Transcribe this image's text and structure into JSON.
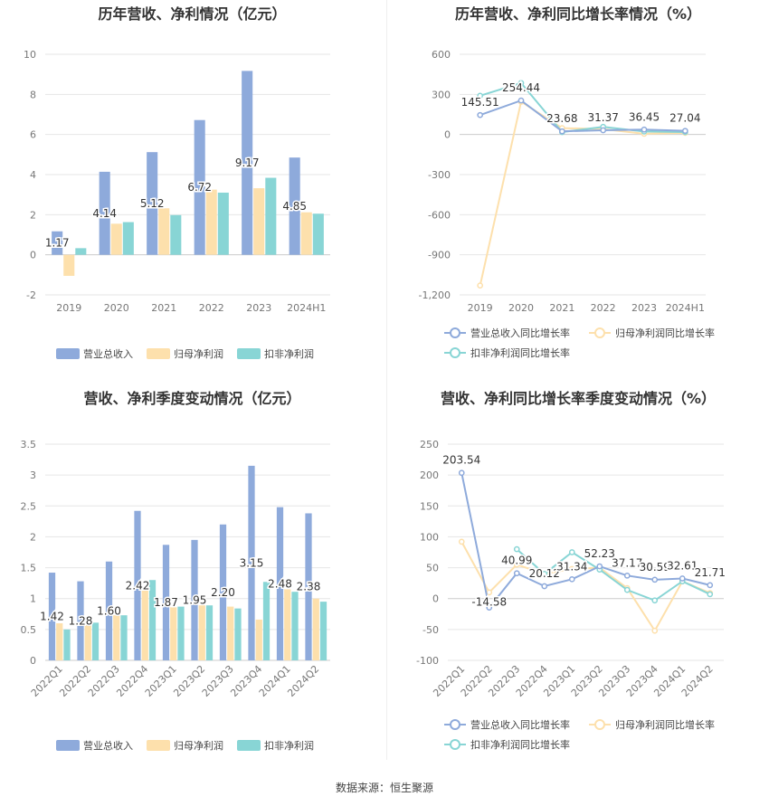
{
  "colors": {
    "revenue": "#8eaadb",
    "net_profit": "#fde0ac",
    "deducted_profit": "#88d5d5",
    "grid": "#e6e6e6",
    "axis_text": "#777777",
    "title": "#333333",
    "label": "#333333"
  },
  "legend_labels": {
    "revenue": "营业总收入",
    "net_profit": "归母净利润",
    "deducted_profit": "扣非净利润",
    "revenue_yoy": "营业总收入同比增长率",
    "net_profit_yoy": "归母净利润同比增长率",
    "deducted_profit_yoy": "扣非净利润同比增长率"
  },
  "source": "数据来源：恒生聚源",
  "chart_data": [
    {
      "id": "annual_amount",
      "type": "bar",
      "title": "历年营收、净利情况（亿元）",
      "categories": [
        "2019",
        "2020",
        "2021",
        "2022",
        "2023",
        "2024H1"
      ],
      "ylim": [
        -2,
        10
      ],
      "yticks": [
        "-2",
        "0",
        "2",
        "4",
        "6",
        "8",
        "10"
      ],
      "ytick_values": [
        -2,
        0,
        2,
        4,
        6,
        8,
        10
      ],
      "series": [
        {
          "name": "营业总收入",
          "values": [
            1.17,
            4.14,
            5.12,
            6.72,
            9.17,
            4.85
          ]
        },
        {
          "name": "归母净利润",
          "values": [
            -1.05,
            1.55,
            2.32,
            3.25,
            3.32,
            2.12
          ]
        },
        {
          "name": "扣非净利润",
          "values": [
            0.33,
            1.63,
            1.98,
            3.1,
            3.84,
            2.05
          ]
        }
      ],
      "data_labels": [
        "1.17",
        "4.14",
        "5.12",
        "6.72",
        "9.17",
        "4.85"
      ]
    },
    {
      "id": "annual_growth",
      "type": "line",
      "title": "历年营收、净利同比增长率情况（%）",
      "categories": [
        "2019",
        "2020",
        "2021",
        "2022",
        "2023",
        "2024H1"
      ],
      "ylim": [
        -1200,
        600
      ],
      "yticks": [
        "-1,200",
        "-900",
        "-600",
        "-300",
        "0",
        "300",
        "600"
      ],
      "ytick_values": [
        -1200,
        -900,
        -600,
        -300,
        0,
        300,
        600
      ],
      "series": [
        {
          "name": "营业总收入同比增长率",
          "values": [
            145.51,
            254.44,
            23.68,
            31.37,
            36.45,
            27.04
          ]
        },
        {
          "name": "归母净利润同比增长率",
          "values": [
            -1130,
            245,
            48,
            40,
            5,
            12
          ]
        },
        {
          "name": "扣非净利润同比增长率",
          "values": [
            290,
            385,
            18,
            57,
            22,
            18
          ]
        }
      ],
      "data_labels": [
        "145.51",
        "254.44",
        "23.68",
        "31.37",
        "36.45",
        "27.04"
      ]
    },
    {
      "id": "quarterly_amount",
      "type": "bar",
      "title": "营收、净利季度变动情况（亿元）",
      "categories": [
        "2022Q1",
        "2022Q2",
        "2022Q3",
        "2022Q4",
        "2023Q1",
        "2023Q2",
        "2023Q3",
        "2023Q4",
        "2024Q1",
        "2024Q2"
      ],
      "ylim": [
        0,
        3.5
      ],
      "yticks": [
        "0",
        "0.5",
        "1",
        "1.5",
        "2",
        "2.5",
        "3",
        "3.5"
      ],
      "ytick_values": [
        0,
        0.5,
        1,
        1.5,
        2,
        2.5,
        3,
        3.5
      ],
      "series": [
        {
          "name": "营业总收入",
          "values": [
            1.42,
            1.28,
            1.6,
            2.42,
            1.87,
            1.95,
            2.2,
            3.15,
            2.48,
            2.38
          ]
        },
        {
          "name": "归母净利润",
          "values": [
            0.6,
            0.58,
            0.73,
            1.17,
            0.86,
            0.89,
            0.87,
            0.66,
            1.15,
            1.0
          ]
        },
        {
          "name": "扣非净利润",
          "values": [
            0.5,
            0.61,
            0.73,
            1.3,
            0.87,
            0.89,
            0.84,
            1.27,
            1.11,
            0.95
          ]
        }
      ],
      "data_labels": [
        "1.42",
        "1.28",
        "1.60",
        "2.42",
        "1.87",
        "1.95",
        "2.20",
        "3.15",
        "2.48",
        "2.38"
      ]
    },
    {
      "id": "quarterly_growth",
      "type": "line",
      "title": "营收、净利同比增长率季度变动情况（%）",
      "categories": [
        "2022Q1",
        "2022Q2",
        "2022Q3",
        "2022Q4",
        "2023Q1",
        "2023Q2",
        "2023Q3",
        "2023Q4",
        "2024Q1",
        "2024Q2"
      ],
      "ylim": [
        -100,
        250
      ],
      "yticks": [
        "-100",
        "-50",
        "0",
        "50",
        "100",
        "150",
        "200",
        "250"
      ],
      "ytick_values": [
        -100,
        -50,
        0,
        50,
        100,
        150,
        200,
        250
      ],
      "series": [
        {
          "name": "营业总收入同比增长率",
          "values": [
            203.54,
            -14.58,
            40.99,
            20.12,
            31.34,
            52.23,
            37.17,
            30.59,
            32.61,
            21.71
          ]
        },
        {
          "name": "归母净利润同比增长率",
          "values": [
            92,
            10,
            55,
            40,
            48,
            50,
            17,
            -52,
            28,
            9
          ]
        },
        {
          "name": "扣非净利润同比增长率",
          "values": [
            null,
            null,
            80,
            40,
            75,
            47,
            14,
            -3,
            28,
            7
          ]
        }
      ],
      "data_labels": [
        "203.54",
        "-14.58",
        "40.99",
        "20.12",
        "31.34",
        "52.23",
        "37.17",
        "30.59",
        "32.61",
        "21.71"
      ]
    }
  ]
}
